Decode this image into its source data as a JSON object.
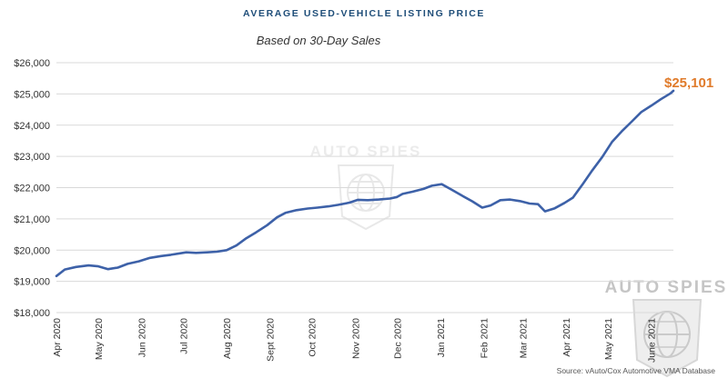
{
  "header": {
    "title": "AVERAGE USED-VEHICLE LISTING PRICE",
    "subtitle": "Based on 30-Day Sales"
  },
  "watermark": {
    "text": "AUTO SPIES"
  },
  "source": "Source: vAuto/Cox Automotive VMA Database",
  "colors": {
    "line": "#3d61a8",
    "annotation": "#e07b2b",
    "grid": "#d9d9d9",
    "title": "#1f4e79"
  },
  "chart_data": {
    "type": "line",
    "title": "AVERAGE USED-VEHICLE LISTING PRICE",
    "subtitle": "Based on 30-Day Sales",
    "ylim": [
      18000,
      26000
    ],
    "yticks": [
      {
        "value": 18000,
        "label": "$18,000"
      },
      {
        "value": 19000,
        "label": "$19,000"
      },
      {
        "value": 20000,
        "label": "$20,000"
      },
      {
        "value": 21000,
        "label": "$21,000"
      },
      {
        "value": 22000,
        "label": "$22,000"
      },
      {
        "value": 23000,
        "label": "$23,000"
      },
      {
        "value": 24000,
        "label": "$24,000"
      },
      {
        "value": 25000,
        "label": "$25,000"
      },
      {
        "value": 26000,
        "label": "$26,000"
      }
    ],
    "grid": true,
    "x_range": [
      "2020-04-01",
      "2021-06-17"
    ],
    "xticks": [
      {
        "date": "2020-04-01",
        "label": "Apr 2020"
      },
      {
        "date": "2020-05-01",
        "label": "May 2020"
      },
      {
        "date": "2020-06-01",
        "label": "Jun 2020"
      },
      {
        "date": "2020-07-01",
        "label": "Jul 2020"
      },
      {
        "date": "2020-08-01",
        "label": "Aug 2020"
      },
      {
        "date": "2020-09-01",
        "label": "Sept 2020"
      },
      {
        "date": "2020-10-01",
        "label": "Oct 2020"
      },
      {
        "date": "2020-11-01",
        "label": "Nov 2020"
      },
      {
        "date": "2020-12-01",
        "label": "Dec 2020"
      },
      {
        "date": "2021-01-01",
        "label": "Jan 2021"
      },
      {
        "date": "2021-02-01",
        "label": "Feb 2021"
      },
      {
        "date": "2021-03-01",
        "label": "Mar 2021"
      },
      {
        "date": "2021-04-01",
        "label": "Apr 2021"
      },
      {
        "date": "2021-05-01",
        "label": "May 2021"
      },
      {
        "date": "2021-06-01",
        "label": "June 2021"
      }
    ],
    "series": [
      {
        "points": [
          [
            "2020-04-01",
            19170
          ],
          [
            "2020-04-07",
            19380
          ],
          [
            "2020-04-15",
            19460
          ],
          [
            "2020-04-24",
            19510
          ],
          [
            "2020-05-01",
            19480
          ],
          [
            "2020-05-08",
            19390
          ],
          [
            "2020-05-15",
            19440
          ],
          [
            "2020-05-22",
            19560
          ],
          [
            "2020-05-30",
            19640
          ],
          [
            "2020-06-07",
            19750
          ],
          [
            "2020-06-15",
            19810
          ],
          [
            "2020-06-22",
            19850
          ],
          [
            "2020-06-29",
            19900
          ],
          [
            "2020-07-03",
            19930
          ],
          [
            "2020-07-10",
            19910
          ],
          [
            "2020-07-18",
            19930
          ],
          [
            "2020-07-25",
            19950
          ],
          [
            "2020-08-01",
            20000
          ],
          [
            "2020-08-08",
            20150
          ],
          [
            "2020-08-15",
            20380
          ],
          [
            "2020-08-22",
            20570
          ],
          [
            "2020-08-30",
            20800
          ],
          [
            "2020-09-06",
            21050
          ],
          [
            "2020-09-12",
            21190
          ],
          [
            "2020-09-20",
            21280
          ],
          [
            "2020-09-28",
            21330
          ],
          [
            "2020-10-05",
            21360
          ],
          [
            "2020-10-13",
            21400
          ],
          [
            "2020-10-20",
            21450
          ],
          [
            "2020-10-28",
            21520
          ],
          [
            "2020-11-03",
            21610
          ],
          [
            "2020-11-10",
            21600
          ],
          [
            "2020-11-18",
            21620
          ],
          [
            "2020-11-26",
            21650
          ],
          [
            "2020-12-01",
            21700
          ],
          [
            "2020-12-05",
            21800
          ],
          [
            "2020-12-12",
            21870
          ],
          [
            "2020-12-20",
            21960
          ],
          [
            "2020-12-26",
            22060
          ],
          [
            "2021-01-02",
            22110
          ],
          [
            "2021-01-09",
            21940
          ],
          [
            "2021-01-16",
            21760
          ],
          [
            "2021-01-24",
            21560
          ],
          [
            "2021-01-31",
            21360
          ],
          [
            "2021-02-06",
            21430
          ],
          [
            "2021-02-13",
            21600
          ],
          [
            "2021-02-20",
            21620
          ],
          [
            "2021-02-27",
            21570
          ],
          [
            "2021-03-06",
            21490
          ],
          [
            "2021-03-12",
            21470
          ],
          [
            "2021-03-17",
            21240
          ],
          [
            "2021-03-24",
            21340
          ],
          [
            "2021-03-31",
            21510
          ],
          [
            "2021-04-06",
            21680
          ],
          [
            "2021-04-13",
            22110
          ],
          [
            "2021-04-20",
            22560
          ],
          [
            "2021-04-27",
            22980
          ],
          [
            "2021-05-04",
            23460
          ],
          [
            "2021-05-11",
            23800
          ],
          [
            "2021-05-18",
            24110
          ],
          [
            "2021-05-25",
            24420
          ],
          [
            "2021-06-01",
            24620
          ],
          [
            "2021-06-08",
            24830
          ],
          [
            "2021-06-15",
            25020
          ],
          [
            "2021-06-17",
            25101
          ]
        ]
      }
    ],
    "annotation": {
      "date": "2021-06-17",
      "value": 25101,
      "label": "$25,101"
    }
  }
}
